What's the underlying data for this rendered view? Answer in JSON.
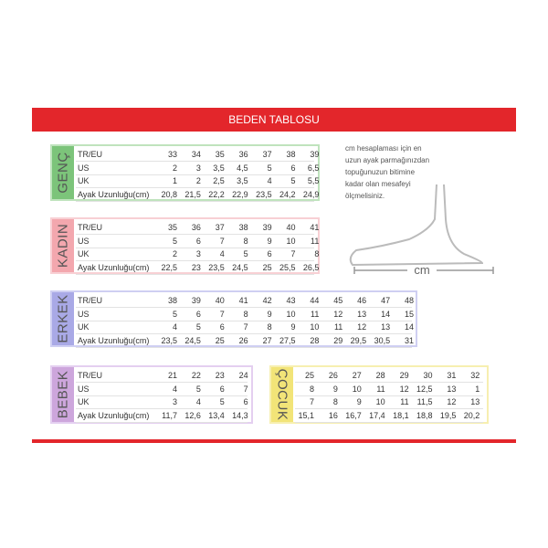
{
  "header": {
    "title": "BEDEN TABLOSU"
  },
  "note": {
    "lines": [
      "cm hesaplaması için en",
      "uzun ayak parmağınızdan",
      "topuğunuzun bitimine",
      "kadar olan mesafeyi",
      "ölçmelisiniz."
    ],
    "unit": "cm"
  },
  "sections": [
    {
      "title": "GENÇ",
      "rows": [
        {
          "label": "TR/EU",
          "cells": [
            "33",
            "34",
            "35",
            "36",
            "37",
            "38",
            "39"
          ]
        },
        {
          "label": "US",
          "cells": [
            "2",
            "3",
            "3,5",
            "4,5",
            "5",
            "6",
            "6,5"
          ]
        },
        {
          "label": "UK",
          "cells": [
            "1",
            "2",
            "2,5",
            "3,5",
            "4",
            "5",
            "5,5"
          ]
        },
        {
          "label": "Ayak Uzunluğu(cm)",
          "cells": [
            "20,8",
            "21,5",
            "22,2",
            "22,9",
            "23,5",
            "24,2",
            "24,9"
          ]
        }
      ]
    },
    {
      "title": "KADIN",
      "rows": [
        {
          "label": "TR/EU",
          "cells": [
            "35",
            "36",
            "37",
            "38",
            "39",
            "40",
            "41"
          ]
        },
        {
          "label": "US",
          "cells": [
            "5",
            "6",
            "7",
            "8",
            "9",
            "10",
            "11"
          ]
        },
        {
          "label": "UK",
          "cells": [
            "2",
            "3",
            "4",
            "5",
            "6",
            "7",
            "8"
          ]
        },
        {
          "label": "Ayak Uzunluğu(cm)",
          "cells": [
            "22,5",
            "23",
            "23,5",
            "24,5",
            "25",
            "25,5",
            "26,5"
          ]
        }
      ]
    },
    {
      "title": "ERKEK",
      "rows": [
        {
          "label": "TR/EU",
          "cells": [
            "38",
            "39",
            "40",
            "41",
            "42",
            "43",
            "44",
            "45",
            "46",
            "47",
            "48"
          ]
        },
        {
          "label": "US",
          "cells": [
            "5",
            "6",
            "7",
            "8",
            "9",
            "10",
            "11",
            "12",
            "13",
            "14",
            "15"
          ]
        },
        {
          "label": "UK",
          "cells": [
            "4",
            "5",
            "6",
            "7",
            "8",
            "9",
            "10",
            "11",
            "12",
            "13",
            "14"
          ]
        },
        {
          "label": "Ayak Uzunluğu(cm)",
          "cells": [
            "23,5",
            "24,5",
            "25",
            "26",
            "27",
            "27,5",
            "28",
            "29",
            "29,5",
            "30,5",
            "31"
          ]
        }
      ]
    },
    {
      "title": "BEBEK",
      "rows": [
        {
          "label": "TR/EU",
          "cells": [
            "21",
            "22",
            "23",
            "24"
          ]
        },
        {
          "label": "US",
          "cells": [
            "4",
            "5",
            "6",
            "7"
          ]
        },
        {
          "label": "UK",
          "cells": [
            "3",
            "4",
            "5",
            "6"
          ]
        },
        {
          "label": "Ayak Uzunluğu(cm)",
          "cells": [
            "11,7",
            "12,6",
            "13,4",
            "14,3"
          ]
        }
      ]
    },
    {
      "title": "ÇOCUK",
      "rows": [
        {
          "cells": [
            "25",
            "26",
            "27",
            "28",
            "29",
            "30",
            "31",
            "32"
          ]
        },
        {
          "cells": [
            "8",
            "9",
            "10",
            "11",
            "12",
            "12,5",
            "13",
            "1"
          ]
        },
        {
          "cells": [
            "7",
            "8",
            "9",
            "10",
            "11",
            "11,5",
            "12",
            "13"
          ]
        },
        {
          "cells": [
            "15,1",
            "16",
            "16,7",
            "17,4",
            "18,1",
            "18,8",
            "19,5",
            "20,2"
          ]
        }
      ]
    }
  ]
}
